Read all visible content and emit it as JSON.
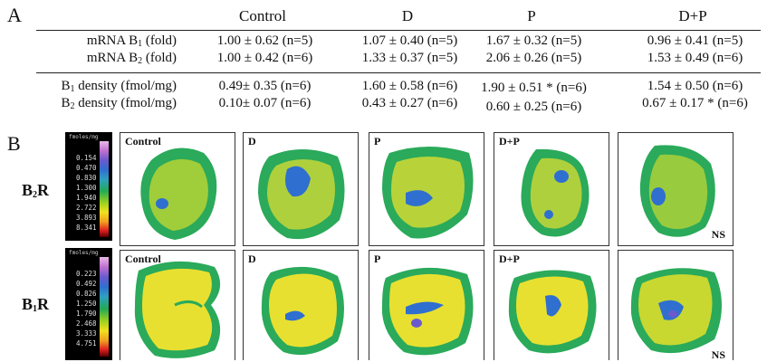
{
  "panel_a": {
    "letter": "A",
    "columns": [
      "Control",
      "D",
      "P",
      "D+P"
    ],
    "group1": [
      {
        "label": "mRNA B",
        "sub": "1",
        "suffix": " (fold)",
        "values": [
          "1.00 ± 0.62 (n=5)",
          "1.07 ± 0.40 (n=5)",
          "1.67 ± 0.32 (n=5)",
          "0.96 ± 0.41 (n=5)"
        ]
      },
      {
        "label": "mRNA B",
        "sub": "2",
        "suffix": " (fold)",
        "values": [
          "1.00 ± 0.42 (n=6)",
          "1.33 ± 0.37 (n=5)",
          "2.06 ± 0.26 (n=5)",
          "1.53 ± 0.49 (n=6)"
        ]
      }
    ],
    "group2": [
      {
        "label": "B",
        "sub": "1",
        "suffix": " density (fmol/mg)",
        "values": [
          "0.49± 0.35 (n=6)",
          "1.60 ± 0.58 (n=6)",
          "1.90 ± 0.51 * (n=6)",
          "1.54 ± 0.50 (n=6)"
        ]
      },
      {
        "label": "B",
        "sub": "2",
        "suffix": " density (fmol/mg)",
        "values": [
          "0.10± 0.07 (n=6)",
          "0.43 ± 0.27 (n=6)",
          "0.60 ± 0.25 (n=6)",
          "0.67 ± 0.17 * (n=6)"
        ]
      }
    ]
  },
  "panel_b": {
    "letter": "B",
    "rows": [
      {
        "name": "B",
        "sub": "2",
        "suffix": "R",
        "scale_unit": "fmoles/mg",
        "scale_ticks": [
          "0.154",
          "0.470",
          "0.830",
          "1.300",
          "1.940",
          "2.722",
          "3.893",
          "8.341"
        ],
        "frames": [
          "Control",
          "D",
          "P",
          "D+P",
          ""
        ],
        "ns": "NS"
      },
      {
        "name": "B",
        "sub": "1",
        "suffix": "R",
        "scale_unit": "fmoles/mg",
        "scale_ticks": [
          "0.223",
          "0.492",
          "0.826",
          "1.250",
          "1.790",
          "2.468",
          "3.333",
          "4.751"
        ],
        "frames": [
          "Control",
          "D",
          "P",
          "D+P",
          ""
        ],
        "ns": "NS"
      }
    ]
  },
  "colors": {
    "low": "#22aa55",
    "mid": "#e8e030",
    "high": "#e02020",
    "blue": "#2f6fd0"
  }
}
